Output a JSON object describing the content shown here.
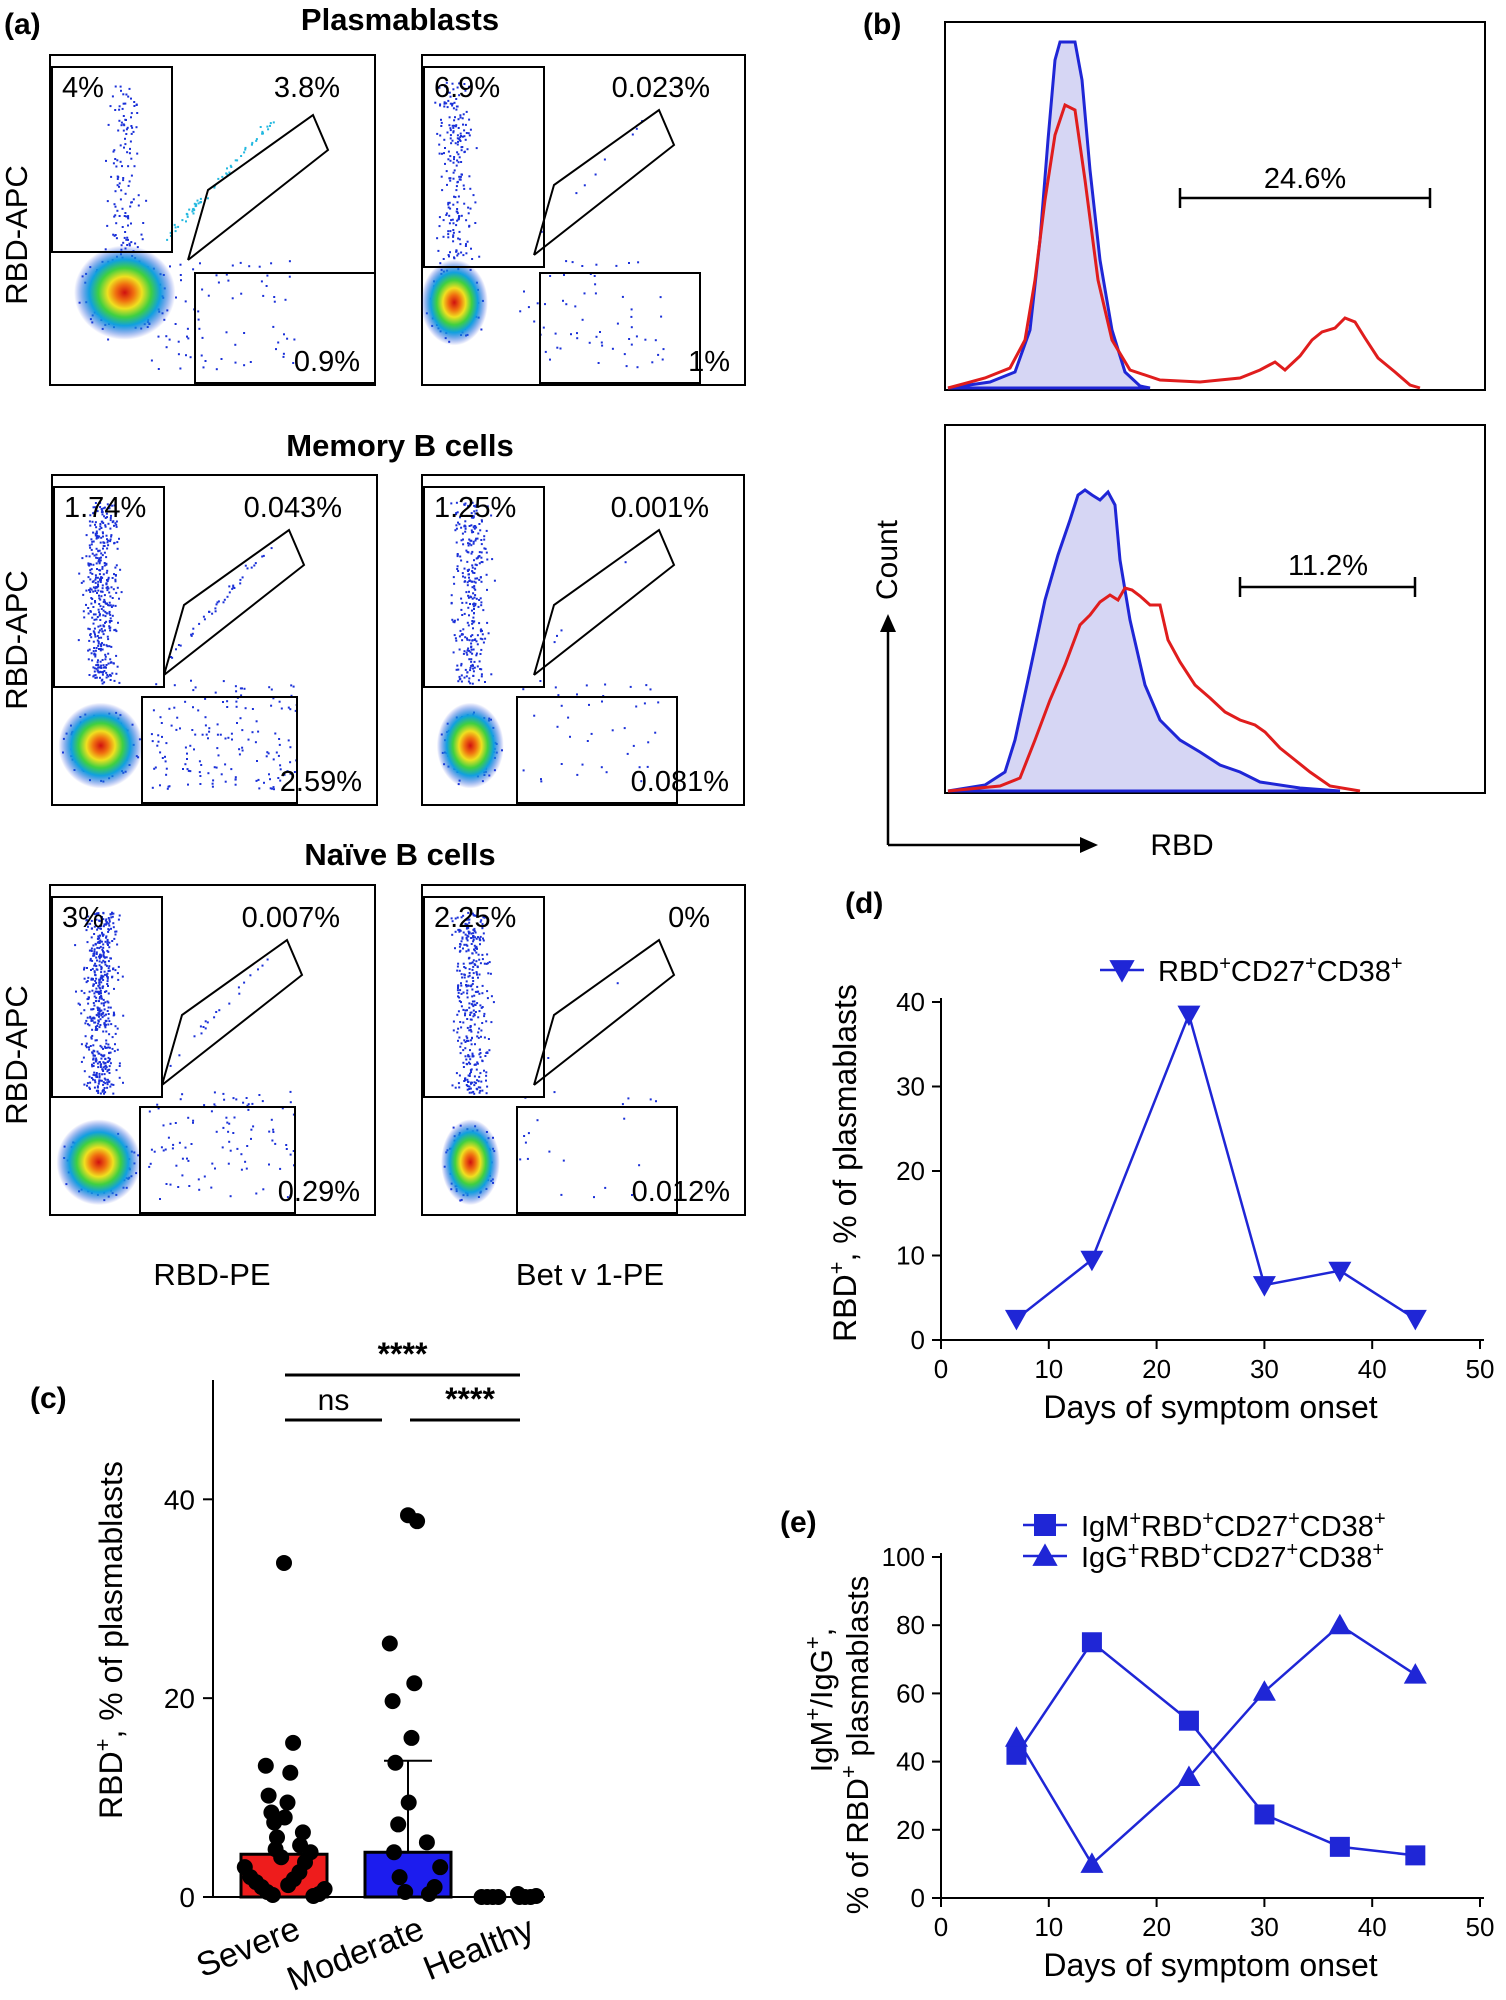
{
  "panels": {
    "a": {
      "label": "(a)",
      "row_titles": [
        "Plasmablasts",
        "Memory B cells",
        "Naïve B cells"
      ],
      "y_axis_label": "RBD-APC",
      "x_axis_labels": [
        "RBD-PE",
        "Bet v 1-PE"
      ],
      "gates": [
        {
          "left": {
            "top_left": "4%",
            "diag": "3.8%",
            "bottom_right": "0.9%"
          },
          "right": {
            "top_left": "6.9%",
            "diag": "0.023%",
            "bottom_right": "1%"
          }
        },
        {
          "left": {
            "top_left": "1.74%",
            "diag": "0.043%",
            "bottom_right": "2.59%"
          },
          "right": {
            "top_left": "1.25%",
            "diag": "0.001%",
            "bottom_right": "0.081%"
          }
        },
        {
          "left": {
            "top_left": "3%",
            "diag": "0.007%",
            "bottom_right": "0.29%"
          },
          "right": {
            "top_left": "2.25%",
            "diag": "0%",
            "bottom_right": "0.012%"
          }
        }
      ]
    },
    "b": {
      "label": "(b)",
      "top_gate": "24.6%",
      "bottom_gate": "11.2%",
      "y_axis_label": "Count",
      "x_axis_label": "RBD"
    },
    "c": {
      "label": "(c)"
    },
    "d": {
      "label": "(d)"
    },
    "e": {
      "label": "(e)"
    }
  },
  "colors": {
    "series_blue": "#1f26d6",
    "hist_red": "#e01d1d",
    "hist_fill": "#d6d6f4",
    "bar_severe": "#ee1c1c",
    "bar_moderate": "#1c1cee"
  },
  "chart_data": [
    {
      "id": "c",
      "type": "bar",
      "categories": [
        "Severe",
        "Moderate",
        "Healthy"
      ],
      "values": [
        4.3,
        4.5,
        0
      ],
      "error_upper": [
        null,
        13.7,
        null
      ],
      "points": {
        "Severe": [
          33.6,
          15.5,
          13.2,
          12.5,
          10.2,
          9.5,
          8.5,
          8,
          7.5,
          6.5,
          6,
          5.2,
          4.8,
          4.5,
          4,
          3.5,
          3,
          2.5,
          2,
          1.8,
          1.5,
          1.2,
          1,
          0.8,
          0.5,
          0.3,
          0.2,
          0.1
        ],
        "Moderate": [
          38.4,
          37.8,
          25.5,
          21.5,
          19.7,
          16,
          13.5,
          9.5,
          7.3,
          5.5,
          4.5,
          3,
          2,
          1,
          0.5,
          0.3
        ],
        "Healthy": [
          0.3,
          0.1,
          0,
          0,
          0,
          0,
          0,
          0,
          0
        ]
      },
      "ylabel": "RBD⁺, % of plasmablasts",
      "ylim": [
        0,
        52
      ],
      "yticks": [
        0,
        20,
        40
      ],
      "significance": [
        {
          "from": "Severe",
          "to": "Healthy",
          "label": "****"
        },
        {
          "from": "Severe",
          "to": "Moderate",
          "label": "ns"
        },
        {
          "from": "Moderate",
          "to": "Healthy",
          "label": "****"
        }
      ]
    },
    {
      "id": "d",
      "type": "line",
      "x": [
        7,
        14,
        23,
        30,
        37,
        44
      ],
      "series": [
        {
          "name": "RBD⁺CD27⁺CD38⁺",
          "values": [
            2.5,
            9.5,
            38.5,
            6.5,
            8.2,
            2.5
          ],
          "marker": "triangle-down"
        }
      ],
      "xlabel": "Days of symptom onset",
      "ylabel": "RBD⁺, % of plasmablasts",
      "xlim": [
        0,
        50
      ],
      "ylim": [
        0,
        40
      ],
      "xticks": [
        0,
        10,
        20,
        30,
        40,
        50
      ],
      "yticks": [
        0,
        10,
        20,
        30,
        40
      ]
    },
    {
      "id": "e",
      "type": "line",
      "x": [
        7,
        14,
        23,
        30,
        37,
        44
      ],
      "series": [
        {
          "name": "IgM⁺RBD⁺CD27⁺CD38⁺",
          "values": [
            42,
            75,
            52,
            24.5,
            15,
            12.5
          ],
          "marker": "square"
        },
        {
          "name": "IgG⁺RBD⁺CD27⁺CD38⁺",
          "values": [
            47,
            10,
            35.5,
            60.5,
            80,
            65.5
          ],
          "marker": "triangle-up"
        }
      ],
      "xlabel": "Days of symptom onset",
      "ylabel_line1": "IgM⁺/IgG⁺,",
      "ylabel_line2": "% of RBD⁺ plasmablasts",
      "xlim": [
        0,
        50
      ],
      "ylim": [
        0,
        100
      ],
      "xticks": [
        0,
        10,
        20,
        30,
        40,
        50
      ],
      "yticks": [
        0,
        20,
        40,
        60,
        80,
        100
      ]
    }
  ]
}
